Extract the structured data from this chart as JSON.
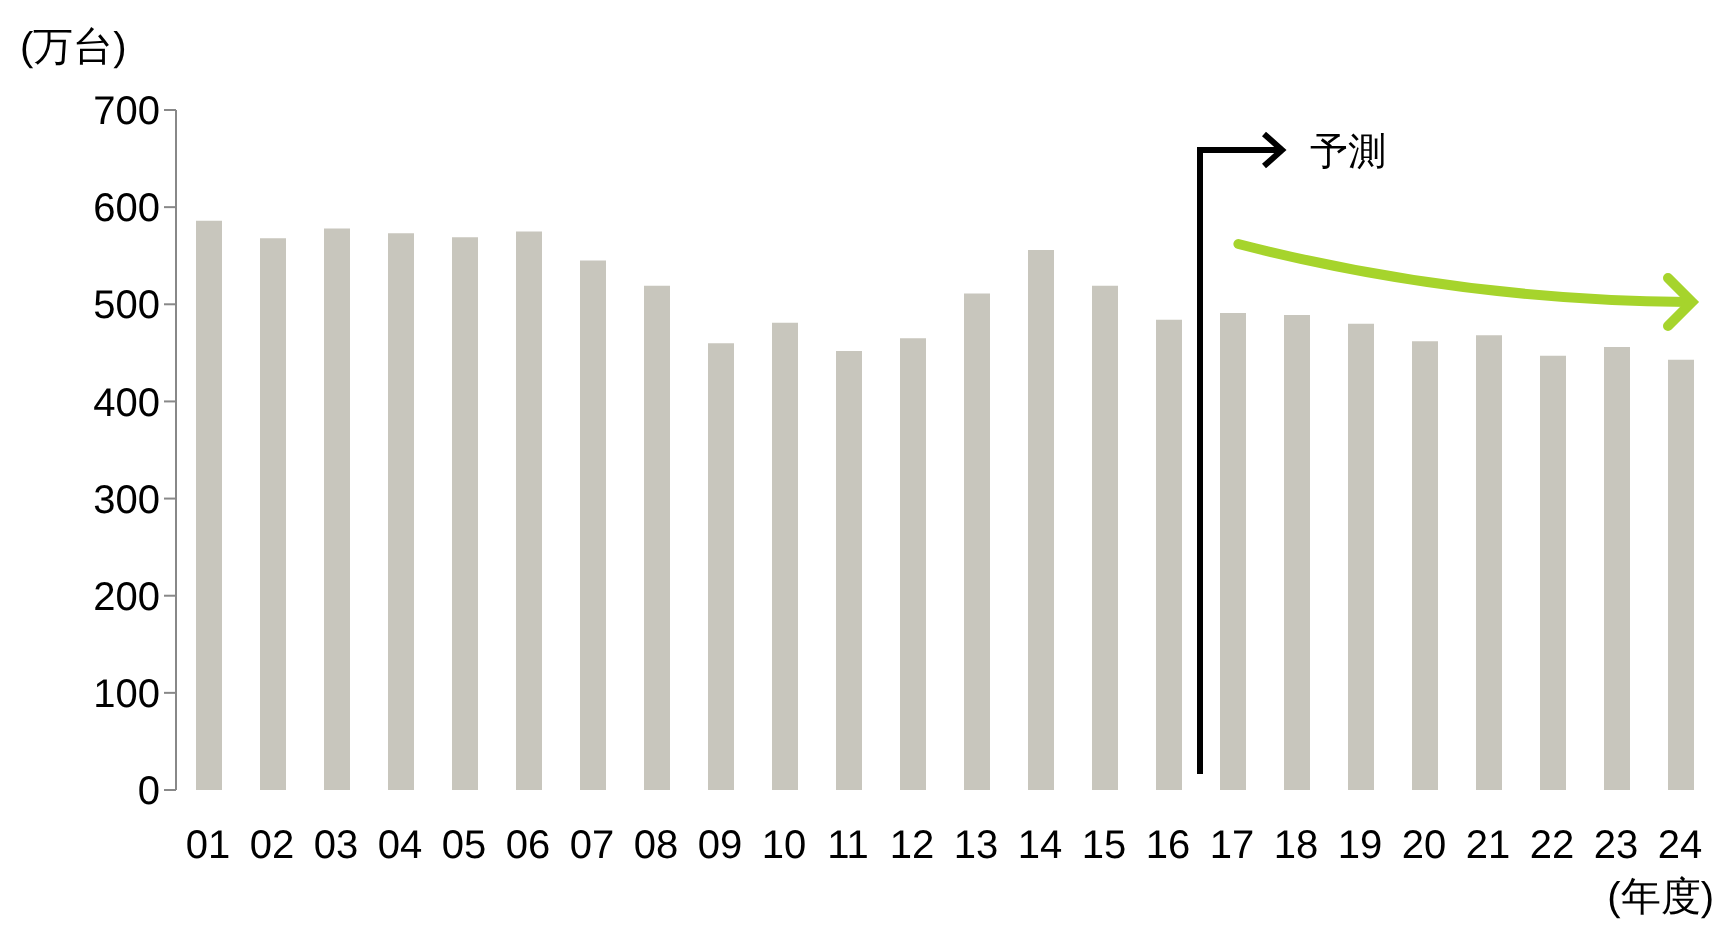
{
  "chart_data": {
    "type": "bar",
    "ylabel": "(万台)",
    "xlabel": "(年度)",
    "categories": [
      "01",
      "02",
      "03",
      "04",
      "05",
      "06",
      "07",
      "08",
      "09",
      "10",
      "11",
      "12",
      "13",
      "14",
      "15",
      "16",
      "17",
      "18",
      "19",
      "20",
      "21",
      "22",
      "23",
      "24"
    ],
    "values": [
      586,
      568,
      578,
      573,
      569,
      575,
      545,
      519,
      460,
      481,
      452,
      465,
      511,
      556,
      519,
      484,
      491,
      489,
      480,
      462,
      468,
      447,
      456,
      443
    ],
    "color": "#c8c6bd",
    "ylim": [
      0,
      700
    ],
    "yticks": [
      0,
      100,
      200,
      300,
      400,
      500,
      600,
      700
    ],
    "grid": false,
    "annotations": [
      "予測"
    ]
  }
}
